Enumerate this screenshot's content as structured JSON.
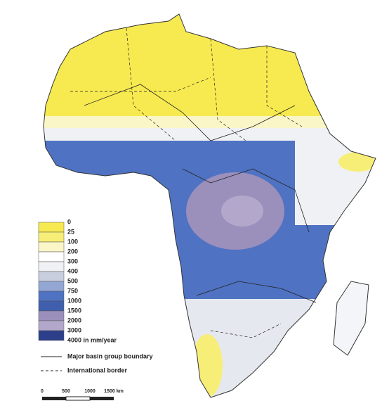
{
  "legend": {
    "labels": [
      "0",
      "25",
      "100",
      "200",
      "300",
      "400",
      "500",
      "750",
      "1000",
      "1500",
      "2000",
      "3000",
      "4000 in mm/year"
    ],
    "colors": [
      "#f7ea50",
      "#f7ee78",
      "#faf6c8",
      "#ffffff",
      "#f0f1f4",
      "#c9cede",
      "#93a6d4",
      "#4f72c2",
      "#3f5fae",
      "#9b8fbc",
      "#b3a8cc",
      "#2c3f8a"
    ]
  },
  "boundaries": [
    {
      "label": "Major basin group boundary"
    },
    {
      "label": "International border"
    }
  ],
  "scale_bar": {
    "labels": [
      "0",
      "500",
      "1000",
      "1500 km"
    ]
  }
}
